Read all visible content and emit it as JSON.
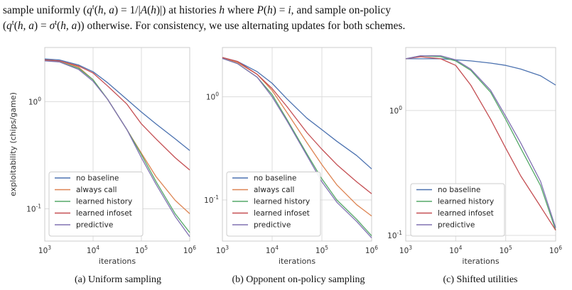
{
  "paragraph": {
    "line1": "sample uniformly (q^t(h,a) = 1/|A(h)|) at histories h where P(h) = i, and sample on-policy",
    "line2": "(q^t(h,a) = σ^t(h,a)) otherwise. For consistency, we use alternating updates for both schemes."
  },
  "colors": {
    "no_baseline": "#4c72b0",
    "always_call": "#dd8452",
    "learned_history": "#55a868",
    "learned_infoset": "#c44e52",
    "predictive": "#8172b2",
    "grid": "#dcdcdc",
    "frame": "#cccccc"
  },
  "chart_data": [
    {
      "type": "line",
      "caption": "(a) Uniform sampling",
      "xlabel": "iterations",
      "ylabel": "exploitability (chips/game)",
      "xscale": "log",
      "yscale": "log",
      "xlim": [
        1000,
        1000000
      ],
      "ylim": [
        0.05,
        3.2
      ],
      "xticks": [
        "10^3",
        "10^4",
        "10^5",
        "10^6"
      ],
      "yticks": [
        "10^-1",
        "10^0"
      ],
      "grid": true,
      "legend": "lower-left",
      "series": [
        {
          "name": "no baseline",
          "color_key": "no_baseline",
          "x": [
            1000,
            2000,
            5000,
            10000,
            20000,
            50000,
            100000,
            200000,
            500000,
            1000000
          ],
          "y": [
            2.5,
            2.45,
            2.2,
            1.9,
            1.5,
            1.05,
            0.8,
            0.62,
            0.45,
            0.35
          ]
        },
        {
          "name": "always call",
          "color_key": "always_call",
          "x": [
            1000,
            2000,
            5000,
            10000,
            20000,
            50000,
            100000,
            200000,
            500000,
            1000000
          ],
          "y": [
            2.45,
            2.4,
            2.1,
            1.6,
            1.05,
            0.55,
            0.33,
            0.2,
            0.12,
            0.09
          ]
        },
        {
          "name": "learned history",
          "color_key": "learned_history",
          "x": [
            1000,
            2000,
            5000,
            10000,
            20000,
            50000,
            100000,
            200000,
            500000,
            1000000
          ],
          "y": [
            2.45,
            2.35,
            2.05,
            1.6,
            1.05,
            0.55,
            0.32,
            0.18,
            0.09,
            0.06
          ]
        },
        {
          "name": "learned infoset",
          "color_key": "learned_infoset",
          "x": [
            1000,
            2000,
            5000,
            10000,
            20000,
            50000,
            100000,
            200000,
            500000,
            1000000
          ],
          "y": [
            2.45,
            2.4,
            2.15,
            1.85,
            1.4,
            0.95,
            0.62,
            0.45,
            0.3,
            0.23
          ]
        },
        {
          "name": "predictive",
          "color_key": "predictive",
          "x": [
            1000,
            2000,
            5000,
            10000,
            20000,
            50000,
            100000,
            200000,
            500000,
            1000000
          ],
          "y": [
            2.4,
            2.35,
            2.0,
            1.55,
            1.05,
            0.55,
            0.3,
            0.17,
            0.085,
            0.055
          ]
        }
      ]
    },
    {
      "type": "line",
      "caption": "(b) Opponent on-policy sampling",
      "xlabel": "iterations",
      "ylabel": "",
      "xscale": "log",
      "yscale": "log",
      "xlim": [
        1000,
        1000000
      ],
      "ylim": [
        0.04,
        3.0
      ],
      "xticks": [
        "10^3",
        "10^4",
        "10^5",
        "10^6"
      ],
      "yticks": [
        "10^-1",
        "10^0"
      ],
      "grid": true,
      "legend": "lower-left",
      "series": [
        {
          "name": "no baseline",
          "color_key": "no_baseline",
          "x": [
            1000,
            2000,
            5000,
            10000,
            20000,
            50000,
            100000,
            200000,
            500000,
            1000000
          ],
          "y": [
            2.4,
            2.2,
            1.75,
            1.35,
            0.95,
            0.62,
            0.48,
            0.37,
            0.27,
            0.2
          ]
        },
        {
          "name": "always call",
          "color_key": "always_call",
          "x": [
            1000,
            2000,
            5000,
            10000,
            20000,
            50000,
            100000,
            200000,
            500000,
            1000000
          ],
          "y": [
            2.4,
            2.15,
            1.65,
            1.15,
            0.7,
            0.36,
            0.22,
            0.14,
            0.09,
            0.07
          ]
        },
        {
          "name": "learned history",
          "color_key": "learned_history",
          "x": [
            1000,
            2000,
            5000,
            10000,
            20000,
            50000,
            100000,
            200000,
            500000,
            1000000
          ],
          "y": [
            2.35,
            2.1,
            1.55,
            1.05,
            0.6,
            0.28,
            0.16,
            0.1,
            0.065,
            0.045
          ]
        },
        {
          "name": "learned infoset",
          "color_key": "learned_infoset",
          "x": [
            1000,
            2000,
            5000,
            10000,
            20000,
            50000,
            100000,
            200000,
            500000,
            1000000
          ],
          "y": [
            2.4,
            2.2,
            1.65,
            1.2,
            0.8,
            0.45,
            0.31,
            0.22,
            0.15,
            0.115
          ]
        },
        {
          "name": "predictive",
          "color_key": "predictive",
          "x": [
            1000,
            2000,
            5000,
            10000,
            20000,
            50000,
            100000,
            200000,
            500000,
            1000000
          ],
          "y": [
            2.35,
            2.1,
            1.55,
            1.0,
            0.58,
            0.27,
            0.15,
            0.095,
            0.062,
            0.043
          ]
        }
      ]
    },
    {
      "type": "line",
      "caption": "(c) Shifted utilities",
      "xlabel": "iterations",
      "ylabel": "",
      "xscale": "log",
      "yscale": "log",
      "xlim": [
        1000,
        1000000
      ],
      "ylim": [
        0.09,
        3.2
      ],
      "xticks": [
        "10^3",
        "10^4",
        "10^5",
        "10^6"
      ],
      "yticks": [
        "10^-1",
        "10^0"
      ],
      "grid": true,
      "legend": "lower-left",
      "series": [
        {
          "name": "no baseline",
          "color_key": "no_baseline",
          "x": [
            1000,
            2000,
            5000,
            10000,
            20000,
            50000,
            100000,
            200000,
            500000,
            1000000
          ],
          "y": [
            2.6,
            2.6,
            2.6,
            2.55,
            2.5,
            2.4,
            2.3,
            2.15,
            1.9,
            1.6
          ]
        },
        {
          "name": "learned history",
          "color_key": "learned_history",
          "x": [
            1000,
            2000,
            5000,
            10000,
            20000,
            50000,
            100000,
            200000,
            500000,
            1000000
          ],
          "y": [
            2.6,
            2.75,
            2.7,
            2.5,
            2.1,
            1.4,
            0.85,
            0.5,
            0.25,
            0.11
          ]
        },
        {
          "name": "learned infoset",
          "color_key": "learned_infoset",
          "x": [
            1000,
            2000,
            5000,
            10000,
            20000,
            50000,
            100000,
            200000,
            500000,
            1000000
          ],
          "y": [
            2.6,
            2.7,
            2.6,
            2.3,
            1.6,
            0.85,
            0.5,
            0.3,
            0.17,
            0.11
          ]
        },
        {
          "name": "predictive",
          "color_key": "predictive",
          "x": [
            1000,
            2000,
            5000,
            10000,
            20000,
            50000,
            100000,
            200000,
            500000,
            1000000
          ],
          "y": [
            2.6,
            2.75,
            2.75,
            2.55,
            2.15,
            1.45,
            0.9,
            0.55,
            0.27,
            0.115
          ]
        }
      ]
    }
  ]
}
